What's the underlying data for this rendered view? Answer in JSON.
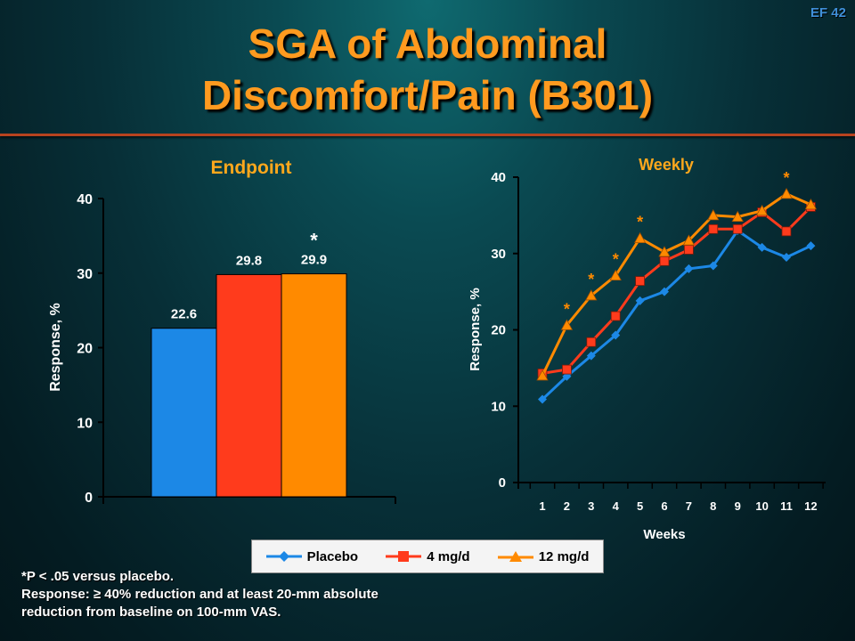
{
  "slide": {
    "id": "EF 42",
    "title_lines": [
      "SGA of Abdominal",
      "Discomfort/Pain (B301)"
    ],
    "colors": {
      "title": "#ff9a1f",
      "chart_title": "#ffa81c",
      "background": "#0a3a42",
      "rule": "#b7431f"
    }
  },
  "chart_data": [
    {
      "type": "bar",
      "title": "Endpoint",
      "ylabel": "Response, %",
      "xlabel": "",
      "ylim": [
        0,
        40
      ],
      "yticks": [
        0,
        10,
        20,
        30,
        40
      ],
      "categories": [
        "Placebo",
        "4 mg/d",
        "12 mg/d"
      ],
      "values": [
        22.6,
        29.8,
        29.9
      ],
      "data_labels": [
        "22.6",
        "29.8",
        "29.9"
      ],
      "significance": [
        "",
        "",
        "*"
      ],
      "colors": [
        "#1c88e6",
        "#ff3b1c",
        "#ff8a00"
      ]
    },
    {
      "type": "line",
      "title": "Weekly",
      "xlabel": "Weeks",
      "ylabel": "Response, %",
      "ylim": [
        0,
        40
      ],
      "yticks": [
        0,
        10,
        20,
        30,
        40
      ],
      "x": [
        1,
        2,
        3,
        4,
        5,
        6,
        7,
        8,
        9,
        10,
        11,
        12
      ],
      "series": [
        {
          "name": "Placebo",
          "color": "#1c88e6",
          "marker": "diamond",
          "values": [
            10.9,
            13.9,
            16.6,
            19.3,
            23.8,
            25.0,
            28.0,
            28.4,
            33.0,
            30.8,
            29.5,
            31.0
          ]
        },
        {
          "name": "4 mg/d",
          "color": "#ff3b1c",
          "marker": "square",
          "values": [
            14.3,
            14.8,
            18.4,
            21.8,
            26.4,
            29.0,
            30.5,
            33.2,
            33.2,
            35.4,
            32.9,
            36.1
          ]
        },
        {
          "name": "12 mg/d",
          "color": "#ff8a00",
          "marker": "triangle",
          "values": [
            14.0,
            20.6,
            24.5,
            27.1,
            32.0,
            30.2,
            31.7,
            35.0,
            34.8,
            35.6,
            37.8,
            36.4
          ]
        }
      ],
      "significant_weeks": [
        2,
        3,
        4,
        5,
        11
      ]
    }
  ],
  "legend": {
    "entries": [
      {
        "label": "Placebo",
        "color": "#1c88e6",
        "marker": "diamond"
      },
      {
        "label": "4 mg/d",
        "color": "#ff3b1c",
        "marker": "square"
      },
      {
        "label": "12 mg/d",
        "color": "#ff8a00",
        "marker": "triangle"
      }
    ]
  },
  "footnote": {
    "line1": "*P < .05 versus placebo.",
    "line2": "Response: ≥ 40% reduction and at least 20-mm absolute",
    "line3": "reduction from baseline on 100-mm VAS."
  }
}
